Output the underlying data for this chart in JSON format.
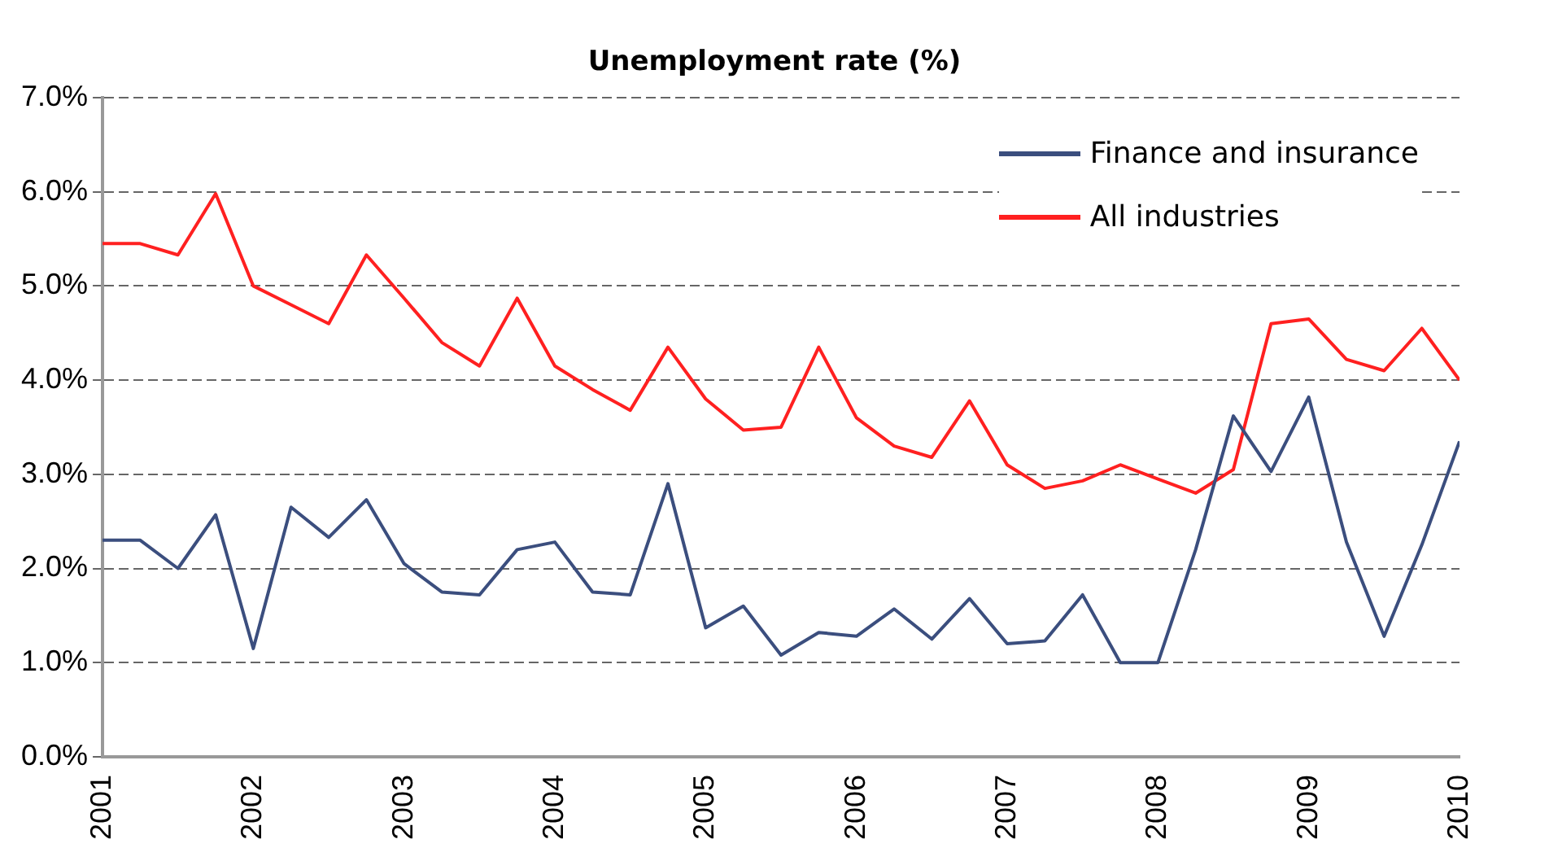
{
  "chart_data": {
    "type": "line",
    "title": "Unemployment rate (%)",
    "x": [
      2001,
      2001.25,
      2001.5,
      2001.75,
      2002,
      2002.25,
      2002.5,
      2002.75,
      2003,
      2003.25,
      2003.5,
      2003.75,
      2004,
      2004.25,
      2004.5,
      2004.75,
      2005,
      2005.25,
      2005.5,
      2005.75,
      2006,
      2006.25,
      2006.5,
      2006.75,
      2007,
      2007.25,
      2007.5,
      2007.75,
      2008,
      2008.25,
      2008.5,
      2008.75,
      2009,
      2009.25,
      2009.5,
      2009.75,
      2010
    ],
    "series": [
      {
        "name": "Finance and insurance",
        "color": "#3b4e7e",
        "values": [
          2.3,
          2.3,
          2.0,
          2.57,
          1.15,
          2.65,
          2.33,
          2.73,
          2.05,
          1.75,
          1.72,
          2.2,
          2.28,
          1.75,
          1.72,
          2.9,
          1.37,
          1.6,
          1.08,
          1.32,
          1.28,
          1.57,
          1.25,
          1.68,
          1.2,
          1.23,
          1.72,
          1.0,
          1.0,
          2.2,
          3.62,
          3.03,
          3.82,
          2.28,
          1.28,
          2.25,
          3.35
        ]
      },
      {
        "name": "All industries",
        "color": "#ff2020",
        "values": [
          5.45,
          5.45,
          5.33,
          5.98,
          5.0,
          4.8,
          4.6,
          5.33,
          4.87,
          4.4,
          4.15,
          4.87,
          4.15,
          3.9,
          3.68,
          4.35,
          3.8,
          3.47,
          3.5,
          4.35,
          3.6,
          3.3,
          3.18,
          3.78,
          3.1,
          2.85,
          2.93,
          3.1,
          2.95,
          2.8,
          3.05,
          4.6,
          4.65,
          4.22,
          4.1,
          4.55,
          4.0
        ]
      }
    ],
    "xlim": [
      2001,
      2010
    ],
    "xticks": [
      2001,
      2002,
      2003,
      2004,
      2005,
      2006,
      2007,
      2008,
      2009,
      2010
    ],
    "ylim": [
      0,
      7
    ],
    "yticks": [
      {
        "value": 0,
        "label": "0.0%"
      },
      {
        "value": 1,
        "label": "1.0%"
      },
      {
        "value": 2,
        "label": "2.0%"
      },
      {
        "value": 3,
        "label": "3.0%"
      },
      {
        "value": 4,
        "label": "4.0%"
      },
      {
        "value": 5,
        "label": "5.0%"
      },
      {
        "value": 6,
        "label": "6.0%"
      },
      {
        "value": 7,
        "label": "7.0%"
      }
    ],
    "grid": "y",
    "legend": "top right",
    "marker": "none",
    "line_style": "solid"
  }
}
